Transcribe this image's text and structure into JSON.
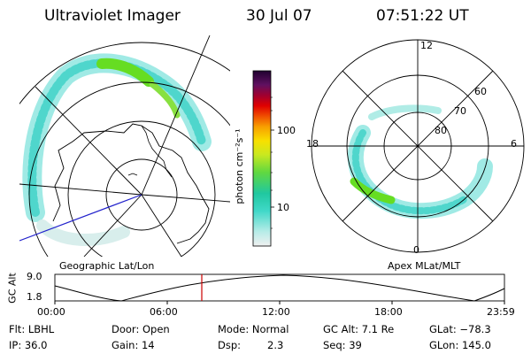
{
  "header": {
    "instrument": "Ultraviolet Imager",
    "date": "30 Jul 07",
    "time": "07:51:22 UT"
  },
  "colorbar": {
    "unit_label": "photon cm⁻²s⁻¹",
    "ticks": [
      "100",
      "10"
    ],
    "scale": "log"
  },
  "left_panel": {
    "caption": "Geographic Lat/Lon"
  },
  "right_panel": {
    "caption": "Apex MLat/MLT",
    "lat_labels": [
      "80",
      "70",
      "60"
    ],
    "mlt_labels": [
      "12",
      "18",
      "6",
      "0"
    ]
  },
  "altitude_plot": {
    "ylabel": "GC Alt",
    "yticks": [
      "9.0",
      "1.8"
    ],
    "xticks": [
      "00:00",
      "06:00",
      "12:00",
      "18:00",
      "23:59"
    ],
    "marker_time": "07:51:22"
  },
  "info": {
    "flt": "Flt: LBHL",
    "ip": "IP: 36.0",
    "door": "Door: Open",
    "gain": "Gain: 14",
    "mode": "Mode: Normal",
    "dsp_label": "Dsp:",
    "dsp_value": "2.3",
    "gc_alt": "GC Alt: 7.1 Re",
    "seq": "Seq: 39",
    "glat": "GLat: −78.3",
    "glon": "GLon: 145.0"
  },
  "colors": {
    "marker": "#cc0000",
    "meridian": "#2222cc",
    "aurora_bright": "#66dd22",
    "aurora_dim": "#66e0d8"
  }
}
